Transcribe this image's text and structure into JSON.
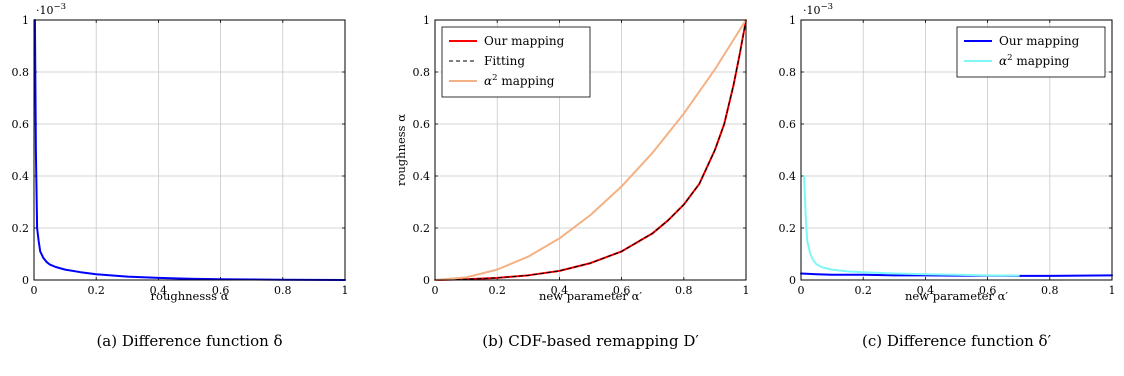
{
  "chart_data": [
    {
      "type": "line",
      "caption": "(a) Difference function δ",
      "xlabel": "roughnesss α",
      "ylabel": "",
      "xlim": [
        0,
        1
      ],
      "ylim": [
        0,
        1
      ],
      "y_scale_label": "·10",
      "y_scale_exp": "−3",
      "xticks": [
        "0",
        "0.2",
        "0.4",
        "0.6",
        "0.8",
        "1"
      ],
      "yticks": [
        "0",
        "0.2",
        "0.4",
        "0.6",
        "0.8",
        "1"
      ],
      "grid": true,
      "legend": null,
      "series": [
        {
          "color": "#0000ff",
          "x": [
            0.003,
            0.006,
            0.01,
            0.015,
            0.02,
            0.03,
            0.04,
            0.05,
            0.07,
            0.1,
            0.15,
            0.2,
            0.3,
            0.4,
            0.5,
            0.6,
            0.7,
            0.8,
            0.9,
            1.0
          ],
          "y": [
            1.0,
            0.5,
            0.2,
            0.15,
            0.11,
            0.085,
            0.07,
            0.06,
            0.05,
            0.04,
            0.03,
            0.022,
            0.013,
            0.008,
            0.005,
            0.003,
            0.002,
            0.0012,
            0.0005,
            0.0
          ]
        }
      ]
    },
    {
      "type": "line",
      "caption": "(b) CDF-based remapping D′",
      "xlabel": "new parameter α′",
      "ylabel": "roughness α",
      "xlim": [
        0,
        1
      ],
      "ylim": [
        0,
        1
      ],
      "xticks": [
        "0",
        "0.2",
        "0.4",
        "0.6",
        "0.8",
        "1"
      ],
      "yticks": [
        "0",
        "0.2",
        "0.4",
        "0.6",
        "0.8",
        "1"
      ],
      "grid": true,
      "legend": "top-left",
      "series": [
        {
          "name": "Our mapping",
          "color": "#ff0000",
          "x": [
            0,
            0.1,
            0.2,
            0.3,
            0.4,
            0.5,
            0.6,
            0.7,
            0.75,
            0.8,
            0.85,
            0.9,
            0.93,
            0.96,
            0.98,
            1.0
          ],
          "y": [
            0,
            0.003,
            0.008,
            0.018,
            0.035,
            0.065,
            0.11,
            0.18,
            0.23,
            0.29,
            0.37,
            0.5,
            0.6,
            0.75,
            0.87,
            1.0
          ]
        },
        {
          "name": "Fitting",
          "color": "#000000",
          "dashed": true,
          "x": [
            0,
            0.1,
            0.2,
            0.3,
            0.4,
            0.5,
            0.6,
            0.7,
            0.75,
            0.8,
            0.85,
            0.9,
            0.93,
            0.96,
            0.98,
            1.0
          ],
          "y": [
            0,
            0.003,
            0.008,
            0.018,
            0.035,
            0.065,
            0.11,
            0.18,
            0.23,
            0.29,
            0.37,
            0.5,
            0.6,
            0.75,
            0.87,
            1.0
          ]
        },
        {
          "name_prefix": "α",
          "name_sup": "2",
          "name_suffix": " mapping",
          "color": "#f4b183",
          "x": [
            0,
            0.1,
            0.2,
            0.3,
            0.4,
            0.5,
            0.6,
            0.7,
            0.8,
            0.9,
            1.0
          ],
          "y": [
            0,
            0.01,
            0.04,
            0.09,
            0.16,
            0.25,
            0.36,
            0.49,
            0.64,
            0.81,
            1.0
          ]
        }
      ]
    },
    {
      "type": "line",
      "caption": "(c) Difference function δ′",
      "xlabel": "new parameter α′",
      "ylabel": "",
      "xlim": [
        0,
        1
      ],
      "ylim": [
        0,
        1
      ],
      "y_scale_label": "·10",
      "y_scale_exp": "−3",
      "xticks": [
        "0",
        "0.2",
        "0.4",
        "0.6",
        "0.8",
        "1"
      ],
      "yticks": [
        "0",
        "0.2",
        "0.4",
        "0.6",
        "0.8",
        "1"
      ],
      "grid": true,
      "legend": "top-right",
      "series": [
        {
          "name": "Our mapping",
          "color": "#0000ff",
          "x": [
            0,
            0.05,
            0.1,
            0.2,
            0.3,
            0.4,
            0.5,
            0.6,
            0.7,
            0.8,
            0.9,
            1.0
          ],
          "y": [
            0.025,
            0.022,
            0.02,
            0.02,
            0.018,
            0.018,
            0.017,
            0.017,
            0.016,
            0.016,
            0.017,
            0.018
          ]
        },
        {
          "name_prefix": "α",
          "name_sup": "2",
          "name_suffix": " mapping",
          "color": "#7ff7f7",
          "x": [
            0.01,
            0.015,
            0.02,
            0.03,
            0.04,
            0.05,
            0.07,
            0.1,
            0.15,
            0.2,
            0.3,
            0.4,
            0.5,
            0.6,
            0.7
          ],
          "y": [
            0.4,
            0.25,
            0.15,
            0.1,
            0.075,
            0.06,
            0.048,
            0.04,
            0.033,
            0.03,
            0.025,
            0.022,
            0.02,
            0.018,
            0.017
          ]
        }
      ]
    }
  ]
}
